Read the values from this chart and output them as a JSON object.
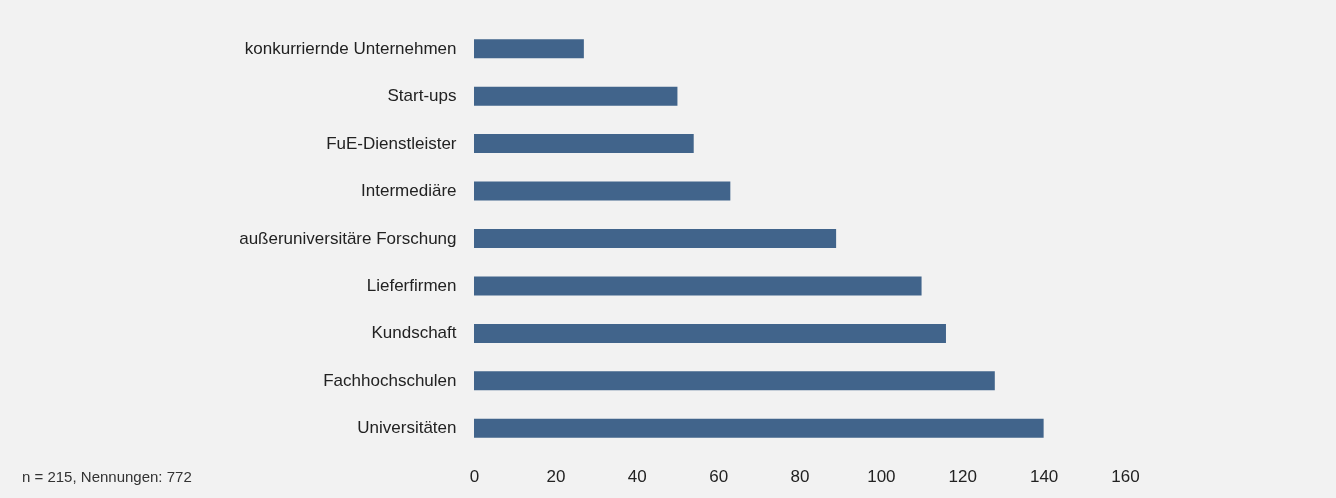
{
  "chart_data": {
    "type": "bar",
    "orientation": "horizontal",
    "categories": [
      "konkurriernde Unternehmen",
      "Start-ups",
      "FuE-Dienstleister",
      "Intermediäre",
      "außeruniversitäre Forschung",
      "Lieferfirmen",
      "Kundschaft",
      "Fachhochschulen",
      "Universitäten"
    ],
    "values": [
      27,
      50,
      54,
      63,
      89,
      110,
      116,
      128,
      140
    ],
    "color": "#41648b",
    "xlim": [
      0,
      160
    ],
    "xticks": [
      0,
      20,
      40,
      60,
      80,
      100,
      120,
      140,
      160
    ],
    "grid": false,
    "annotations": [
      "n = 215, Nennungen: 772"
    ]
  }
}
